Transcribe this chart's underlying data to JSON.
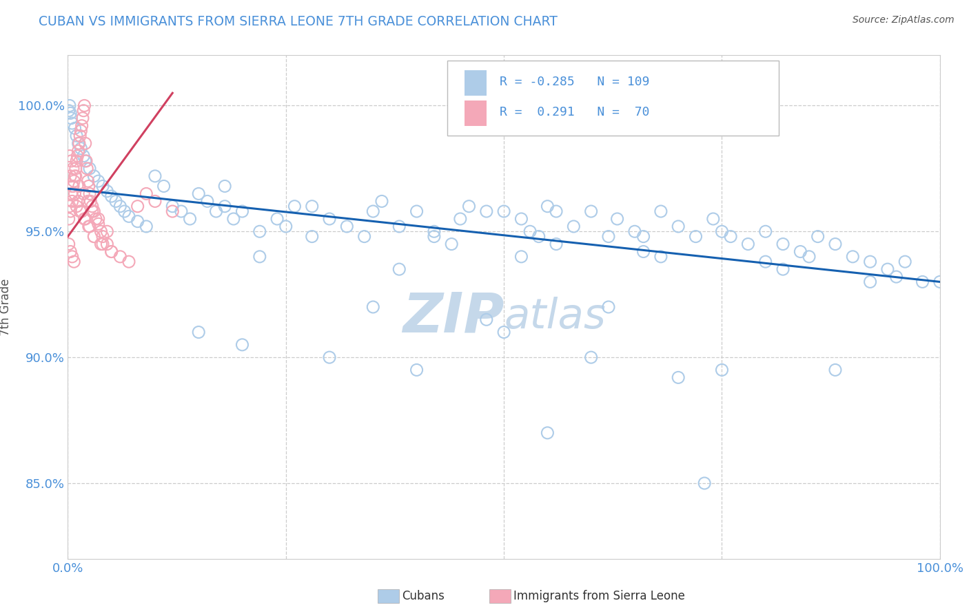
{
  "title": "CUBAN VS IMMIGRANTS FROM SIERRA LEONE 7TH GRADE CORRELATION CHART",
  "source_text": "Source: ZipAtlas.com",
  "ylabel": "7th Grade",
  "y_tick_labels": [
    "85.0%",
    "90.0%",
    "95.0%",
    "100.0%"
  ],
  "y_tick_values": [
    0.85,
    0.9,
    0.95,
    1.0
  ],
  "legend_blue_r": "-0.285",
  "legend_blue_n": "109",
  "legend_pink_r": "0.291",
  "legend_pink_n": "70",
  "blue_color": "#aecce8",
  "pink_color": "#f4a8b8",
  "trend_blue_color": "#1560b0",
  "trend_pink_color": "#d04060",
  "watermark_zip": "ZIP",
  "watermark_atlas": "atlas",
  "watermark_color": "#c5d8ea",
  "background_color": "#ffffff",
  "blue_scatter_x": [
    0.001,
    0.002,
    0.003,
    0.004,
    0.005,
    0.008,
    0.01,
    0.012,
    0.015,
    0.018,
    0.02,
    0.025,
    0.03,
    0.035,
    0.04,
    0.045,
    0.05,
    0.055,
    0.06,
    0.065,
    0.07,
    0.08,
    0.09,
    0.1,
    0.11,
    0.12,
    0.13,
    0.14,
    0.15,
    0.16,
    0.17,
    0.18,
    0.19,
    0.2,
    0.22,
    0.24,
    0.25,
    0.26,
    0.28,
    0.3,
    0.32,
    0.34,
    0.35,
    0.36,
    0.38,
    0.4,
    0.42,
    0.44,
    0.45,
    0.46,
    0.48,
    0.5,
    0.52,
    0.53,
    0.54,
    0.55,
    0.56,
    0.58,
    0.6,
    0.62,
    0.63,
    0.65,
    0.66,
    0.68,
    0.7,
    0.72,
    0.74,
    0.75,
    0.76,
    0.78,
    0.8,
    0.82,
    0.84,
    0.85,
    0.86,
    0.88,
    0.9,
    0.92,
    0.94,
    0.95,
    0.96,
    0.98,
    1.0,
    0.15,
    0.2,
    0.3,
    0.4,
    0.5,
    0.6,
    0.7,
    0.22,
    0.35,
    0.48,
    0.62,
    0.75,
    0.88,
    0.38,
    0.52,
    0.66,
    0.8,
    0.18,
    0.28,
    0.42,
    0.56,
    0.68,
    0.82,
    0.92,
    0.55,
    0.73
  ],
  "blue_scatter_y": [
    0.998,
    1.0,
    0.997,
    0.995,
    0.993,
    0.991,
    0.988,
    0.985,
    0.983,
    0.98,
    0.978,
    0.975,
    0.972,
    0.97,
    0.968,
    0.966,
    0.964,
    0.962,
    0.96,
    0.958,
    0.956,
    0.954,
    0.952,
    0.972,
    0.968,
    0.96,
    0.958,
    0.955,
    0.965,
    0.962,
    0.958,
    0.96,
    0.955,
    0.958,
    0.95,
    0.955,
    0.952,
    0.96,
    0.948,
    0.955,
    0.952,
    0.948,
    0.958,
    0.962,
    0.952,
    0.958,
    0.948,
    0.945,
    0.955,
    0.96,
    0.958,
    0.958,
    0.955,
    0.95,
    0.948,
    0.96,
    0.958,
    0.952,
    0.958,
    0.948,
    0.955,
    0.95,
    0.948,
    0.958,
    0.952,
    0.948,
    0.955,
    0.95,
    0.948,
    0.945,
    0.95,
    0.945,
    0.942,
    0.94,
    0.948,
    0.945,
    0.94,
    0.938,
    0.935,
    0.932,
    0.938,
    0.93,
    0.93,
    0.91,
    0.905,
    0.9,
    0.895,
    0.91,
    0.9,
    0.892,
    0.94,
    0.92,
    0.915,
    0.92,
    0.895,
    0.895,
    0.935,
    0.94,
    0.942,
    0.938,
    0.968,
    0.96,
    0.95,
    0.945,
    0.94,
    0.935,
    0.93,
    0.87,
    0.85
  ],
  "pink_scatter_x": [
    0.001,
    0.002,
    0.003,
    0.004,
    0.005,
    0.006,
    0.007,
    0.008,
    0.009,
    0.01,
    0.011,
    0.012,
    0.013,
    0.014,
    0.015,
    0.016,
    0.017,
    0.018,
    0.019,
    0.02,
    0.021,
    0.022,
    0.023,
    0.024,
    0.025,
    0.026,
    0.028,
    0.03,
    0.032,
    0.035,
    0.038,
    0.04,
    0.045,
    0.05,
    0.06,
    0.07,
    0.08,
    0.09,
    0.1,
    0.12,
    0.003,
    0.005,
    0.008,
    0.012,
    0.016,
    0.02,
    0.025,
    0.03,
    0.04,
    0.05,
    0.002,
    0.004,
    0.006,
    0.009,
    0.013,
    0.018,
    0.023,
    0.028,
    0.035,
    0.045,
    0.001,
    0.003,
    0.005,
    0.007,
    0.01,
    0.014,
    0.019,
    0.024,
    0.03,
    0.038
  ],
  "pink_scatter_y": [
    0.955,
    0.96,
    0.958,
    0.965,
    0.962,
    0.968,
    0.97,
    0.972,
    0.975,
    0.978,
    0.98,
    0.982,
    0.985,
    0.988,
    0.99,
    0.992,
    0.995,
    0.998,
    1.0,
    0.985,
    0.978,
    0.975,
    0.97,
    0.968,
    0.965,
    0.962,
    0.96,
    0.958,
    0.955,
    0.953,
    0.95,
    0.948,
    0.945,
    0.942,
    0.94,
    0.938,
    0.96,
    0.965,
    0.962,
    0.958,
    0.972,
    0.968,
    0.965,
    0.962,
    0.958,
    0.955,
    0.952,
    0.948,
    0.945,
    0.942,
    0.98,
    0.978,
    0.975,
    0.972,
    0.968,
    0.965,
    0.962,
    0.958,
    0.955,
    0.95,
    0.945,
    0.942,
    0.94,
    0.938,
    0.96,
    0.958,
    0.955,
    0.952,
    0.948,
    0.945
  ]
}
